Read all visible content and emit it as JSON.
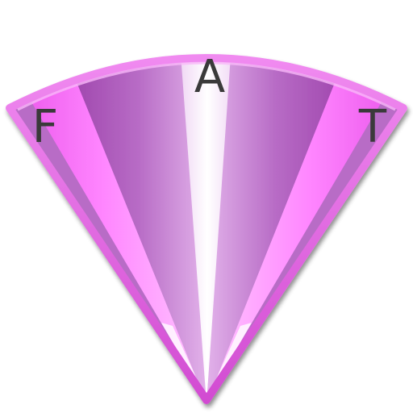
{
  "icon": {
    "letters": {
      "left": "F",
      "center": "A",
      "right": "T"
    },
    "colors": {
      "outline": "#d64fd6",
      "outline_light": "#f28af2",
      "fill_dark": "#9c3fa8",
      "fill_mid": "#c37ad0",
      "fill_light": "#e7b8ee",
      "highlight": "#ffffff",
      "side_bright": "#ff7cff",
      "letter": "#3a3a3a"
    }
  }
}
